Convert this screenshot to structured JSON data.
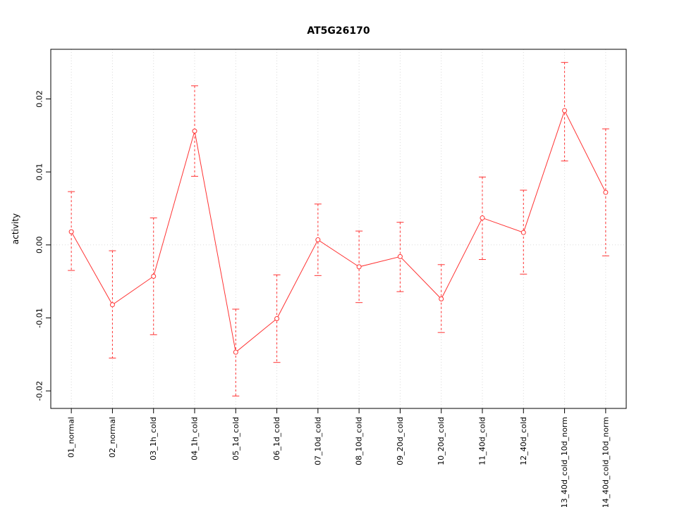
{
  "chart_data": {
    "type": "line",
    "title": "AT5G26170",
    "xlabel": "",
    "ylabel": "activity",
    "ylim": [
      -0.0224,
      0.0268
    ],
    "yticks": [
      -0.02,
      -0.01,
      0,
      0.01,
      0.02
    ],
    "grid": {
      "vertical": "dotted",
      "horizontal": "none",
      "zero_line": "dotted"
    },
    "legend": "none",
    "marker": "open-circle",
    "error_bar_style": "dashed-stem-solid-caps",
    "categories": [
      "01_normal",
      "02_normal",
      "03_1h_cold",
      "04_1h_cold",
      "05_1d_cold",
      "06_1d_cold",
      "07_10d_cold",
      "08_10d_cold",
      "09_20d_cold",
      "10_20d_cold",
      "11_40d_cold",
      "12_40d_cold",
      "13_40d_cold_10d_norm",
      "14_40d_cold_10d_norm"
    ],
    "series": [
      {
        "name": "activity",
        "values": [
          0.0018,
          -0.0082,
          -0.0043,
          0.0156,
          -0.0147,
          -0.0101,
          0.0007,
          -0.003,
          -0.0016,
          -0.0074,
          0.0037,
          0.0017,
          0.0184,
          0.0072
        ],
        "upper": [
          0.0073,
          -0.0008,
          0.0037,
          0.0218,
          -0.0088,
          -0.0041,
          0.0056,
          0.0019,
          0.0031,
          -0.0027,
          0.0093,
          0.0075,
          0.025,
          0.0159
        ],
        "lower": [
          -0.0035,
          -0.0155,
          -0.0123,
          0.0094,
          -0.0207,
          -0.0161,
          -0.0042,
          -0.0079,
          -0.0064,
          -0.012,
          -0.002,
          -0.004,
          0.0115,
          -0.0015
        ]
      }
    ],
    "colors": {
      "series": "#ff3333",
      "grid": "#d9d9d9",
      "zero_line": "#dcdcdc",
      "axis": "#000000",
      "background": "#ffffff"
    }
  }
}
